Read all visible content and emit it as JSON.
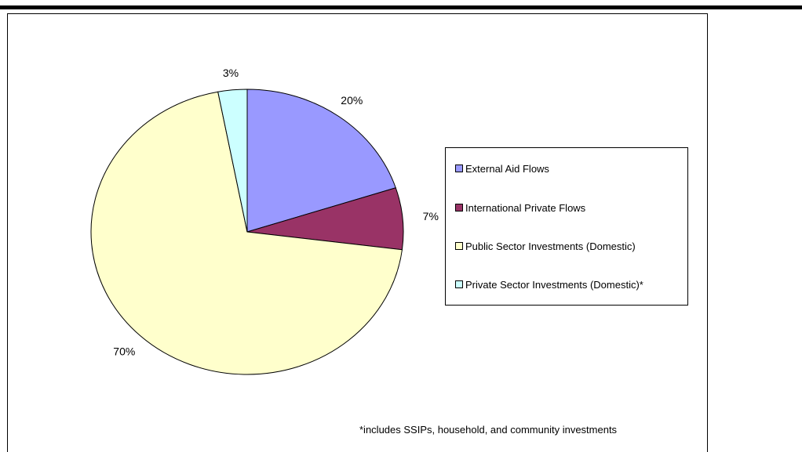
{
  "chart_data": {
    "type": "pie",
    "categories": [
      "External Aid Flows",
      "International Private Flows",
      "Public Sector Investments (Domestic)",
      "Private Sector Investments (Domestic)*"
    ],
    "values": [
      20,
      7,
      70,
      3
    ],
    "labels": [
      "20%",
      "7%",
      "70%",
      "3%"
    ],
    "colors": [
      "#9999ff",
      "#993366",
      "#ffffcc",
      "#ccffff"
    ],
    "legend_position": "right",
    "footnote": "*includes SSIPs, household, and community investments"
  }
}
